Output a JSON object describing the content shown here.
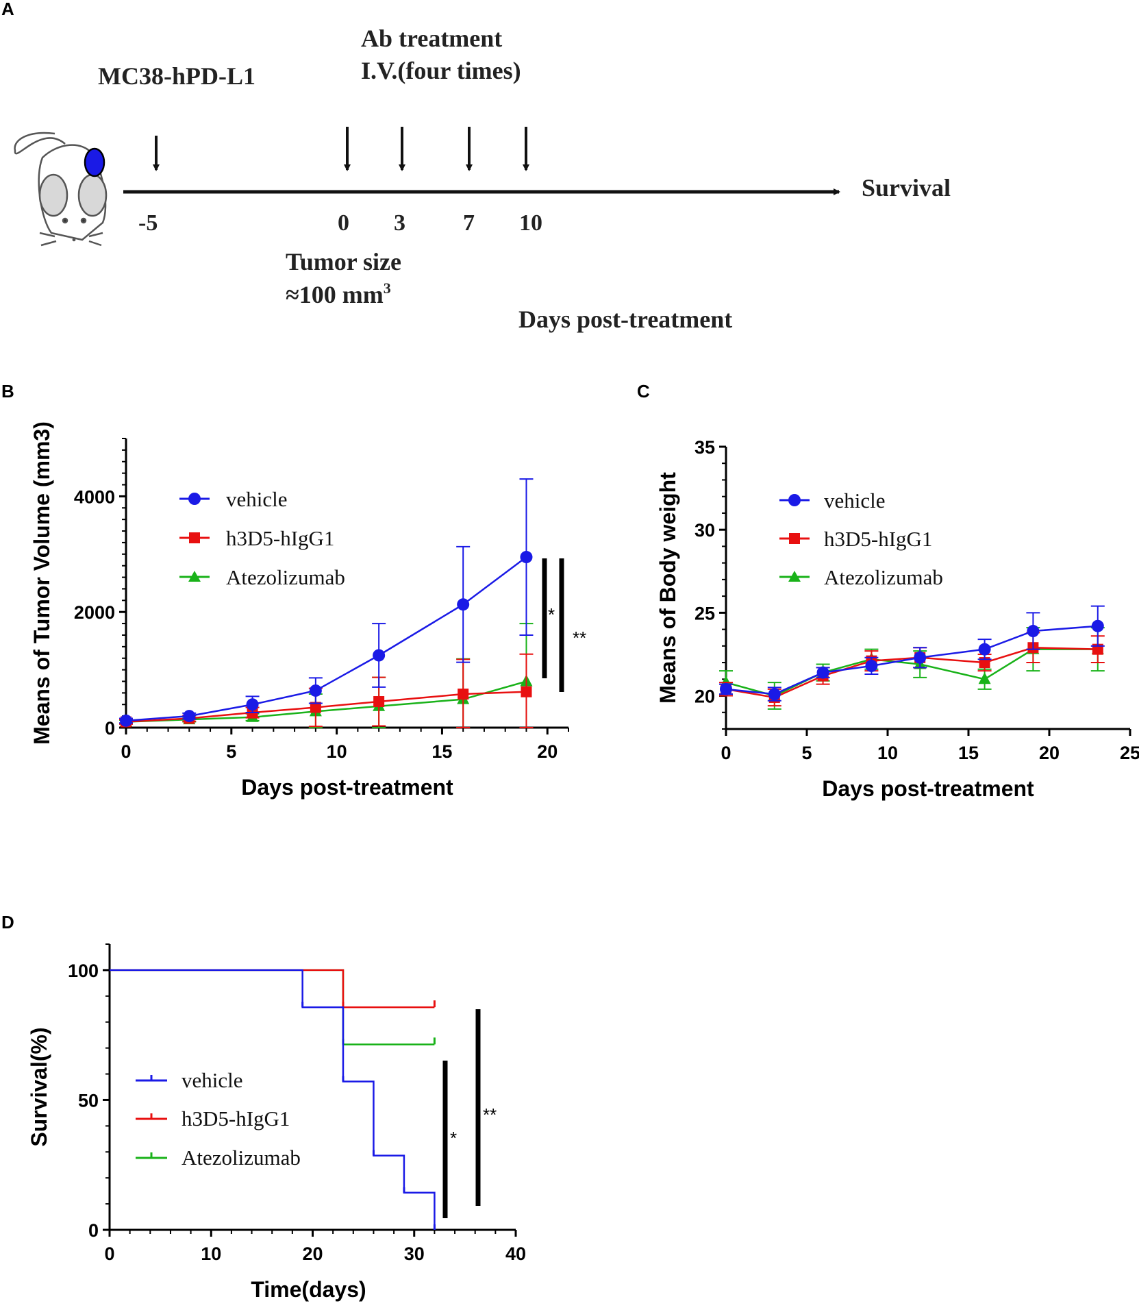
{
  "panels": {
    "A": "A",
    "B": "B",
    "C": "C",
    "D": "D"
  },
  "schematic": {
    "cell_line": "MC38-hPD-L1",
    "treatment_line1": "Ab treatment",
    "treatment_line2": "I.V.(four times)",
    "endpoint": "Survival",
    "timepoints": [
      "-5",
      "0",
      "3",
      "7",
      "10"
    ],
    "tumor_size_line1": "Tumor size",
    "tumor_size_line2": "≈100 mm",
    "tumor_size_sup": "3",
    "xlabel": "Days post-treatment"
  },
  "legend": {
    "vehicle": "vehicle",
    "h3D5": "h3D5-hIgG1",
    "atezo": "Atezolizumab"
  },
  "colors": {
    "vehicle": "#1a1ae6",
    "h3D5": "#e81010",
    "atezo": "#19b219"
  },
  "significance": {
    "single": "*",
    "double": "**"
  },
  "chart_data": [
    {
      "id": "B",
      "type": "line",
      "title": "",
      "xlabel": "Days post-treatment",
      "ylabel": "Means of Tumor Volume (mm3)",
      "xlim": [
        0,
        21
      ],
      "ylim": [
        0,
        5000
      ],
      "xticks": [
        0,
        5,
        10,
        15,
        20
      ],
      "yticks": [
        0,
        2000,
        4000
      ],
      "legend_position": "top-left",
      "series": [
        {
          "name": "vehicle",
          "x": [
            0,
            3,
            6,
            9,
            12,
            16,
            19
          ],
          "values": [
            120,
            200,
            400,
            640,
            1250,
            2130,
            2950
          ],
          "err": [
            40,
            50,
            140,
            220,
            550,
            1000,
            1350
          ]
        },
        {
          "name": "h3D5-hIgG1",
          "x": [
            0,
            3,
            6,
            9,
            12,
            16,
            19
          ],
          "values": [
            100,
            160,
            260,
            350,
            450,
            580,
            620
          ],
          "err": [
            40,
            50,
            90,
            330,
            420,
            600,
            650
          ]
        },
        {
          "name": "Atezolizumab",
          "x": [
            0,
            3,
            6,
            9,
            12,
            16,
            19
          ],
          "values": [
            100,
            140,
            180,
            280,
            370,
            490,
            800
          ],
          "err": [
            30,
            40,
            60,
            300,
            500,
            700,
            1000
          ]
        }
      ],
      "annotations": [
        "*",
        "**"
      ]
    },
    {
      "id": "C",
      "type": "line",
      "title": "",
      "xlabel": "Days post-treatment",
      "ylabel": "Means of Body weight",
      "xlim": [
        0,
        25
      ],
      "ylim": [
        18,
        35
      ],
      "xticks": [
        0,
        5,
        10,
        15,
        20,
        25
      ],
      "yticks": [
        20,
        25,
        30,
        35
      ],
      "legend_position": "top-left",
      "series": [
        {
          "name": "vehicle",
          "x": [
            0,
            3,
            6,
            9,
            12,
            16,
            19,
            23
          ],
          "values": [
            20.4,
            20.1,
            21.4,
            21.8,
            22.3,
            22.8,
            23.9,
            24.2
          ],
          "err": [
            0.3,
            0.4,
            0.3,
            0.5,
            0.6,
            0.6,
            1.1,
            1.2
          ]
        },
        {
          "name": "h3D5-hIgG1",
          "x": [
            0,
            3,
            6,
            9,
            12,
            16,
            19,
            23
          ],
          "values": [
            20.4,
            19.9,
            21.2,
            22.1,
            22.3,
            22.0,
            22.9,
            22.8
          ],
          "err": [
            0.4,
            0.5,
            0.5,
            0.6,
            0.6,
            0.5,
            0.9,
            0.8
          ]
        },
        {
          "name": "Atezolizumab",
          "x": [
            0,
            3,
            6,
            9,
            12,
            16,
            19,
            23
          ],
          "values": [
            20.8,
            20.0,
            21.4,
            22.2,
            21.9,
            21.0,
            22.8,
            22.8
          ],
          "err": [
            0.7,
            0.8,
            0.5,
            0.6,
            0.8,
            0.6,
            1.3,
            1.3
          ]
        }
      ]
    },
    {
      "id": "D",
      "type": "line",
      "subtype": "kaplan-meier",
      "title": "",
      "xlabel": "Time(days)",
      "ylabel": "Survival(%)",
      "xlim": [
        0,
        40
      ],
      "ylim": [
        0,
        110
      ],
      "xticks": [
        0,
        10,
        20,
        30,
        40
      ],
      "yticks": [
        0,
        50,
        100
      ],
      "legend_position": "bottom-left",
      "series": [
        {
          "name": "vehicle",
          "steps": [
            [
              0,
              100
            ],
            [
              19,
              85.7
            ],
            [
              23,
              57.1
            ],
            [
              26,
              28.6
            ],
            [
              29,
              14.3
            ],
            [
              32,
              0
            ]
          ],
          "end": 32
        },
        {
          "name": "h3D5-hIgG1",
          "steps": [
            [
              0,
              100
            ],
            [
              23,
              85.7
            ]
          ],
          "end": 32
        },
        {
          "name": "Atezolizumab",
          "steps": [
            [
              0,
              100
            ],
            [
              23,
              71.4
            ]
          ],
          "end": 32
        }
      ],
      "annotations": [
        "*",
        "**"
      ]
    }
  ]
}
